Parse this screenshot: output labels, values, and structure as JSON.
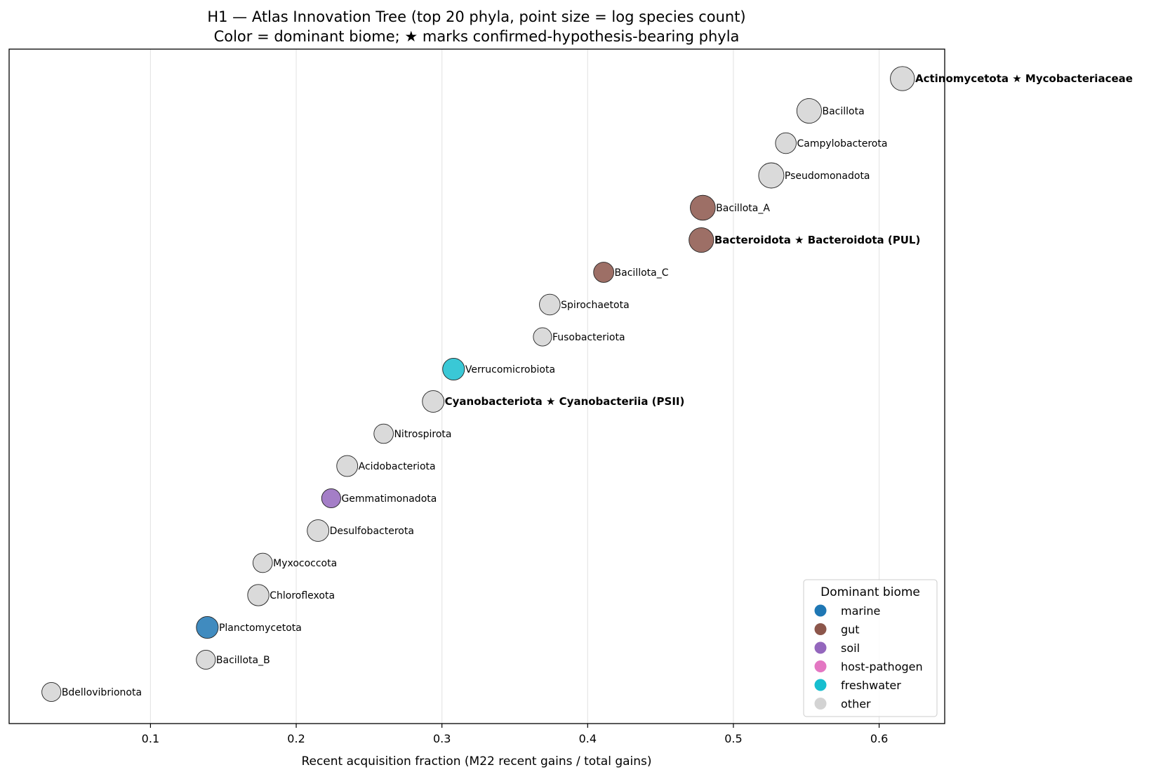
{
  "chart_data": {
    "type": "scatter",
    "title": "H1 — Atlas Innovation Tree (top 20 phyla, point size = log species count)",
    "subtitle": "Color = dominant biome; ★ marks confirmed-hypothesis-bearing phyla",
    "xlabel": "Recent acquisition fraction (M22 recent gains / total gains)",
    "ylabel": "",
    "xlim": [
      0.003,
      0.645
    ],
    "xticks": [
      0.1,
      0.2,
      0.3,
      0.4,
      0.5,
      0.6
    ],
    "xtick_labels": [
      "0.1",
      "0.2",
      "0.3",
      "0.4",
      "0.5",
      "0.6"
    ],
    "grid": "vertical",
    "legend": {
      "title": "Dominant biome",
      "placement": "lower-right",
      "entries": [
        {
          "label": "marine",
          "color": "#1f77b4"
        },
        {
          "label": "gut",
          "color": "#8c564b"
        },
        {
          "label": "soil",
          "color": "#9467bd"
        },
        {
          "label": "host-pathogen",
          "color": "#e377c2"
        },
        {
          "label": "freshwater",
          "color": "#17becf"
        },
        {
          "label": "other",
          "color": "#d3d3d3"
        }
      ]
    },
    "points": [
      {
        "label": "Actinomycetota ★ Mycobacteriaceae",
        "x": 0.616,
        "biome": "other",
        "size": 0.9,
        "highlight": true
      },
      {
        "label": "Bacillota",
        "x": 0.552,
        "biome": "other",
        "size": 0.95,
        "highlight": false
      },
      {
        "label": "Campylobacterota",
        "x": 0.536,
        "biome": "other",
        "size": 0.6,
        "highlight": false
      },
      {
        "label": "Pseudomonadota",
        "x": 0.526,
        "biome": "other",
        "size": 1.0,
        "highlight": false
      },
      {
        "label": "Bacillota_A",
        "x": 0.479,
        "biome": "gut",
        "size": 0.98,
        "highlight": false
      },
      {
        "label": "Bacteroidota ★ Bacteroidota (PUL)",
        "x": 0.478,
        "biome": "gut",
        "size": 0.95,
        "highlight": true
      },
      {
        "label": "Bacillota_C",
        "x": 0.411,
        "biome": "gut",
        "size": 0.55,
        "highlight": false
      },
      {
        "label": "Spirochaetota",
        "x": 0.374,
        "biome": "other",
        "size": 0.6,
        "highlight": false
      },
      {
        "label": "Fusobacteriota",
        "x": 0.369,
        "biome": "other",
        "size": 0.38,
        "highlight": false
      },
      {
        "label": "Verrucomicrobiota",
        "x": 0.308,
        "biome": "freshwater",
        "size": 0.7,
        "highlight": false
      },
      {
        "label": "Cyanobacteriota ★ Cyanobacteriia (PSII)",
        "x": 0.294,
        "biome": "other",
        "size": 0.68,
        "highlight": true
      },
      {
        "label": "Nitrospirota",
        "x": 0.26,
        "biome": "other",
        "size": 0.48,
        "highlight": false
      },
      {
        "label": "Acidobacteriota",
        "x": 0.235,
        "biome": "other",
        "size": 0.62,
        "highlight": false
      },
      {
        "label": "Gemmatimonadota",
        "x": 0.224,
        "biome": "soil",
        "size": 0.45,
        "highlight": false
      },
      {
        "label": "Desulfobacterota",
        "x": 0.215,
        "biome": "other",
        "size": 0.68,
        "highlight": false
      },
      {
        "label": "Myxococcota",
        "x": 0.177,
        "biome": "other",
        "size": 0.48,
        "highlight": false
      },
      {
        "label": "Chloroflexota",
        "x": 0.174,
        "biome": "other",
        "size": 0.65,
        "highlight": false
      },
      {
        "label": "Planctomycetota",
        "x": 0.139,
        "biome": "marine",
        "size": 0.7,
        "highlight": false
      },
      {
        "label": "Bacillota_B",
        "x": 0.138,
        "biome": "other",
        "size": 0.45,
        "highlight": false
      },
      {
        "label": "Bdellovibrionota",
        "x": 0.032,
        "biome": "other",
        "size": 0.45,
        "highlight": false
      }
    ]
  }
}
